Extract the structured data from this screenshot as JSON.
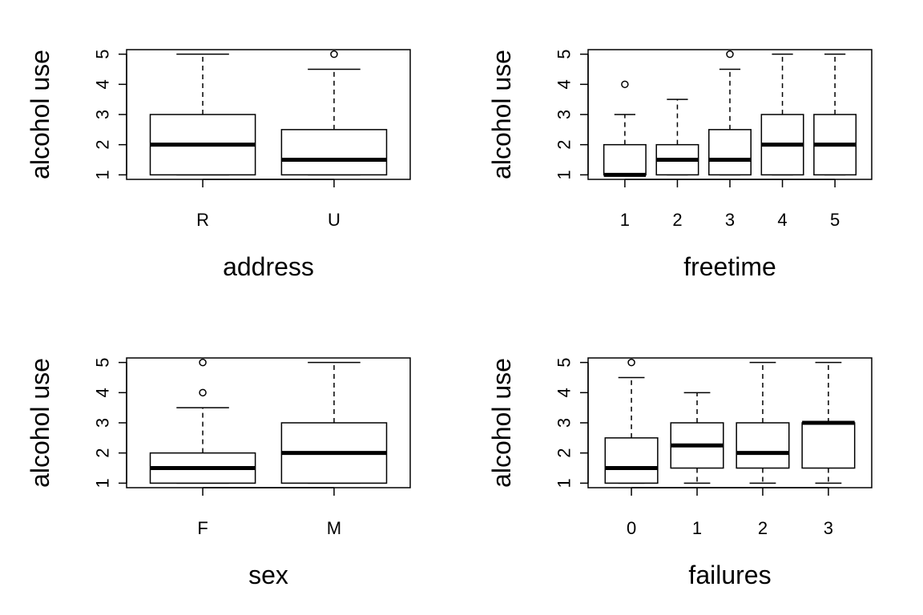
{
  "chart_data": [
    {
      "type": "box",
      "xlabel": "address",
      "ylabel": "alcohol use",
      "ylim": [
        0.85,
        5.15
      ],
      "yticks": [
        1,
        2,
        3,
        4,
        5
      ],
      "boxes": [
        {
          "category": "R",
          "min": 1,
          "q1": 1,
          "median": 2,
          "q3": 3,
          "max": 5,
          "outliers": []
        },
        {
          "category": "U",
          "min": 1,
          "q1": 1,
          "median": 1.5,
          "q3": 2.5,
          "max": 4.5,
          "outliers": [
            5
          ]
        }
      ]
    },
    {
      "type": "box",
      "xlabel": "freetime",
      "ylabel": "alcohol use",
      "ylim": [
        0.85,
        5.15
      ],
      "yticks": [
        1,
        2,
        3,
        4,
        5
      ],
      "boxes": [
        {
          "category": "1",
          "min": 1,
          "q1": 1,
          "median": 1,
          "q3": 2,
          "max": 3,
          "outliers": [
            4
          ]
        },
        {
          "category": "2",
          "min": 1,
          "q1": 1,
          "median": 1.5,
          "q3": 2,
          "max": 3.5,
          "outliers": []
        },
        {
          "category": "3",
          "min": 1,
          "q1": 1,
          "median": 1.5,
          "q3": 2.5,
          "max": 4.5,
          "outliers": [
            5
          ]
        },
        {
          "category": "4",
          "min": 1,
          "q1": 1,
          "median": 2,
          "q3": 3,
          "max": 5,
          "outliers": []
        },
        {
          "category": "5",
          "min": 1,
          "q1": 1,
          "median": 2,
          "q3": 3,
          "max": 5,
          "outliers": []
        }
      ]
    },
    {
      "type": "box",
      "xlabel": "sex",
      "ylabel": "alcohol use",
      "ylim": [
        0.85,
        5.15
      ],
      "yticks": [
        1,
        2,
        3,
        4,
        5
      ],
      "boxes": [
        {
          "category": "F",
          "min": 1,
          "q1": 1,
          "median": 1.5,
          "q3": 2,
          "max": 3.5,
          "outliers": [
            4,
            5
          ]
        },
        {
          "category": "M",
          "min": 1,
          "q1": 1,
          "median": 2,
          "q3": 3,
          "max": 5,
          "outliers": []
        }
      ]
    },
    {
      "type": "box",
      "xlabel": "failures",
      "ylabel": "alcohol use",
      "ylim": [
        0.85,
        5.15
      ],
      "yticks": [
        1,
        2,
        3,
        4,
        5
      ],
      "boxes": [
        {
          "category": "0",
          "min": 1,
          "q1": 1,
          "median": 1.5,
          "q3": 2.5,
          "max": 4.5,
          "outliers": [
            5
          ]
        },
        {
          "category": "1",
          "min": 1,
          "q1": 1.5,
          "median": 2.25,
          "q3": 3,
          "max": 4,
          "outliers": []
        },
        {
          "category": "2",
          "min": 1,
          "q1": 1.5,
          "median": 2,
          "q3": 3,
          "max": 5,
          "outliers": []
        },
        {
          "category": "3",
          "min": 1,
          "q1": 1.5,
          "median": 3,
          "q3": 3,
          "max": 5,
          "outliers": []
        }
      ]
    }
  ]
}
